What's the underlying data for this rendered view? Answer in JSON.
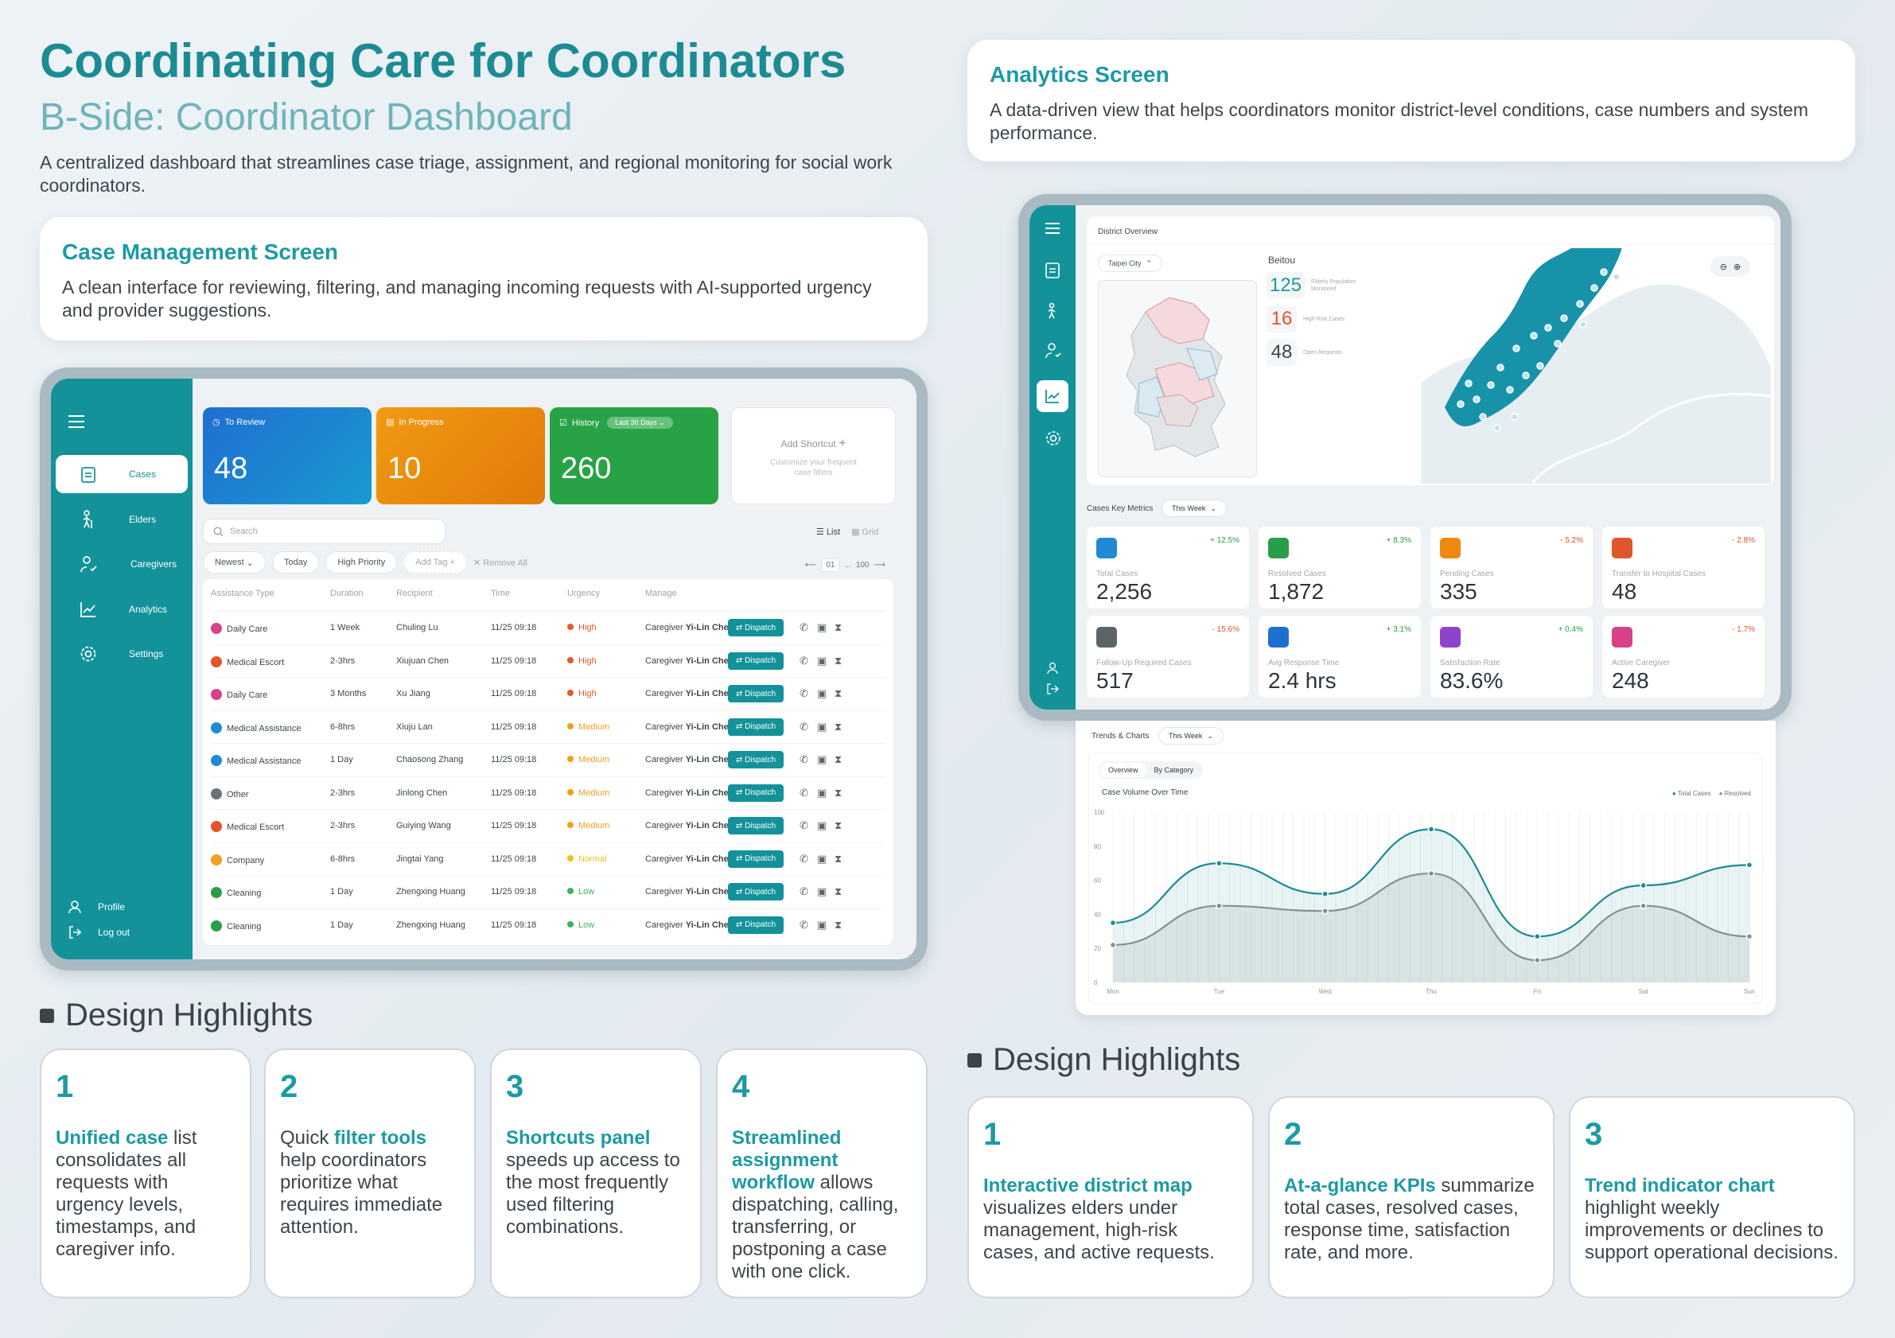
{
  "header": {
    "title": "Coordinating Care for Coordinators",
    "subtitle": "B-Side: Coordinator Dashboard",
    "description": "A centralized dashboard that streamlines case triage, assignment, and regional monitoring for social work coordinators."
  },
  "case_card": {
    "title": "Case Management Screen",
    "text": "A clean interface for reviewing, filtering, and managing incoming requests with AI-supported urgency and provider suggestions."
  },
  "analytics_card": {
    "title": "Analytics Screen",
    "text": "A data-driven view that helps coordinators monitor district-level conditions, case numbers and system performance."
  },
  "case_app": {
    "nav": [
      {
        "label": "Cases",
        "icon": "clipboard-icon"
      },
      {
        "label": "Elders",
        "icon": "elder-icon"
      },
      {
        "label": "Caregivers",
        "icon": "caregiver-icon"
      },
      {
        "label": "Analytics",
        "icon": "chart-icon"
      },
      {
        "label": "Settings",
        "icon": "gear-icon"
      }
    ],
    "nav_bottom": [
      {
        "label": "Profile"
      },
      {
        "label": "Log out"
      }
    ],
    "stats": [
      {
        "label": "To Review",
        "value": "48",
        "color": "#1f6fd1"
      },
      {
        "label": "In Progress",
        "value": "10",
        "color": "#ee8a10"
      },
      {
        "label": "History",
        "value": "260",
        "color": "#27a345",
        "badge": "Last 30 Days"
      }
    ],
    "shortcut": {
      "title": "Add Shortcut",
      "sub": "Customize your frequent case filters"
    },
    "search_placeholder": "Search",
    "view": {
      "list": "List",
      "grid": "Grid"
    },
    "filters": [
      "Newest",
      "Today",
      "High Priority"
    ],
    "add_tag": "Add Tag",
    "remove_all": "Remove All",
    "pager": {
      "page": "01",
      "sep": "...",
      "last": "100"
    },
    "columns": [
      "Assistance Type",
      "Duration",
      "Recipient",
      "Time",
      "Urgency",
      "Manage"
    ],
    "caregiver_label": "Caregiver",
    "dispatch_label": "Dispatch",
    "rows": [
      {
        "type": "Daily Care",
        "color": "#d9418a",
        "duration": "1 Week",
        "recipient": "Chuling Lu",
        "time": "11/25 09:18",
        "urgency": "High",
        "urgency_color": "#e25a2c",
        "caregiver": "Yi-Lin Chen"
      },
      {
        "type": "Medical Escort",
        "color": "#e0552c",
        "duration": "2-3hrs",
        "recipient": "Xiujuan Chen",
        "time": "11/25 09:18",
        "urgency": "High",
        "urgency_color": "#e25a2c",
        "caregiver": "Yi-Lin Chen"
      },
      {
        "type": "Daily Care",
        "color": "#d9418a",
        "duration": "3 Months",
        "recipient": "Xu Jiang",
        "time": "11/25 09:18",
        "urgency": "High",
        "urgency_color": "#e25a2c",
        "caregiver": "Yi-Lin Chen"
      },
      {
        "type": "Medical Assistance",
        "color": "#1f8bd6",
        "duration": "6-8hrs",
        "recipient": "Xiuju Lan",
        "time": "11/25 09:18",
        "urgency": "Medium",
        "urgency_color": "#f0a020",
        "caregiver": "Yi-Lin Chen"
      },
      {
        "type": "Medical Assistance",
        "color": "#1f8bd6",
        "duration": "1 Day",
        "recipient": "Chaosong Zhang",
        "time": "11/25 09:18",
        "urgency": "Medium",
        "urgency_color": "#f0a020",
        "caregiver": "Yi-Lin Chen"
      },
      {
        "type": "Other",
        "color": "#6b7378",
        "duration": "2-3hrs",
        "recipient": "Jinlong Chen",
        "time": "11/25 09:18",
        "urgency": "Medium",
        "urgency_color": "#f0a020",
        "caregiver": "Yi-Lin Chen"
      },
      {
        "type": "Medical Escort",
        "color": "#e0552c",
        "duration": "2-3hrs",
        "recipient": "Guiying Wang",
        "time": "11/25 09:18",
        "urgency": "Medium",
        "urgency_color": "#f0a020",
        "caregiver": "Yi-Lin Chen"
      },
      {
        "type": "Company",
        "color": "#f0a020",
        "duration": "6-8hrs",
        "recipient": "Jingtai Yang",
        "time": "11/25 09:18",
        "urgency": "Normal",
        "urgency_color": "#f0c020",
        "caregiver": "Yi-Lin Chen"
      },
      {
        "type": "Cleaning",
        "color": "#2a9d48",
        "duration": "1 Day",
        "recipient": "Zhengxing Huang",
        "time": "11/25 09:18",
        "urgency": "Low",
        "urgency_color": "#3cb35a",
        "caregiver": "Yi-Lin Chen"
      },
      {
        "type": "Cleaning",
        "color": "#2a9d48",
        "duration": "1 Day",
        "recipient": "Zhengxing Huang",
        "time": "11/25 09:18",
        "urgency": "Low",
        "urgency_color": "#3cb35a",
        "caregiver": "Yi-Lin Chen"
      }
    ]
  },
  "analytics_app": {
    "district_title": "District Overview",
    "city": "Taipei City",
    "district": "Beitou",
    "district_stats": [
      {
        "value": "125",
        "label": "Elderly Population Monitored",
        "color": "#1c9aa3"
      },
      {
        "value": "16",
        "label": "High-Risk Cases",
        "color": "#e0552c"
      },
      {
        "value": "48",
        "label": "Open Requests",
        "color": "#3c464c"
      }
    ],
    "metrics_title": "Cases Key Metrics",
    "period": "This Week",
    "kpis": [
      {
        "label": "Total Cases",
        "value": "2,256",
        "change": "+ 12.5%",
        "color": "#1f8bd6",
        "change_color": "#2a9d48"
      },
      {
        "label": "Resolved Cases",
        "value": "1,872",
        "change": "+ 8.3%",
        "color": "#2a9d48",
        "change_color": "#2a9d48"
      },
      {
        "label": "Pending Cases",
        "value": "335",
        "change": "- 5.2%",
        "color": "#ee8a10",
        "change_color": "#e0552c"
      },
      {
        "label": "Transfer to Hospital Cases",
        "value": "48",
        "change": "- 2.8%",
        "color": "#e0552c",
        "change_color": "#e0552c"
      },
      {
        "label": "Follow-Up Required Cases",
        "value": "517",
        "change": "- 15.6%",
        "color": "#5c6468",
        "change_color": "#e0552c"
      },
      {
        "label": "Avg Response Time",
        "value": "2.4 hrs",
        "change": "+ 3.1%",
        "color": "#1f6fd1",
        "change_color": "#2a9d48"
      },
      {
        "label": "Satisfaction Rate",
        "value": "83.6%",
        "change": "+ 0.4%",
        "color": "#8e44c9",
        "change_color": "#2a9d48"
      },
      {
        "label": "Active Caregiver",
        "value": "248",
        "change": "- 1.7%",
        "color": "#d9418a",
        "change_color": "#e0552c"
      }
    ],
    "trends_title": "Trends & Charts",
    "trend_period": "This Week",
    "tabs": [
      "Overview",
      "By Category"
    ]
  },
  "chart_data": {
    "type": "line",
    "title": "Case Volume Over Time",
    "categories": [
      "Mon",
      "Tue",
      "Wed",
      "Thu",
      "Fri",
      "Sat",
      "Sun"
    ],
    "ylim": [
      0,
      100
    ],
    "yticks": [
      0,
      20,
      40,
      60,
      80,
      100
    ],
    "series": [
      {
        "name": "Total Cases",
        "color": "#1c8b93",
        "values": [
          35,
          70,
          52,
          90,
          27,
          57,
          69
        ]
      },
      {
        "name": "Resolved",
        "color": "#888f93",
        "values": [
          22,
          45,
          42,
          64,
          13,
          45,
          27
        ]
      }
    ]
  },
  "highlights_left": {
    "title": "Design Highlights",
    "items": [
      {
        "num": "1",
        "pre": "",
        "bold": "Unified case",
        "post": " list consolidates all requests with urgency levels, timestamps, and caregiver info."
      },
      {
        "num": "2",
        "pre": "Quick ",
        "bold": "filter tools",
        "post": " help coordinators prioritize what requires immediate attention."
      },
      {
        "num": "3",
        "pre": "",
        "bold": "Shortcuts panel",
        "post": " speeds up access to the most frequently used filtering combinations."
      },
      {
        "num": "4",
        "pre": "",
        "bold": "Streamlined assignment workflow",
        "post": " allows dispatching, calling, transferring, or postponing a case with one click."
      }
    ]
  },
  "highlights_right": {
    "title": "Design Highlights",
    "items": [
      {
        "num": "1",
        "pre": "",
        "bold": "Interactive district map",
        "post": " visualizes elders under management, high-risk cases, and active requests."
      },
      {
        "num": "2",
        "pre": "",
        "bold": "At-a-glance KPIs",
        "post": " summarize total cases, resolved cases, response time, satisfaction rate, and more."
      },
      {
        "num": "3",
        "pre": "",
        "bold": "Trend indicator chart",
        "post": " highlight weekly improvements or declines to support operational decisions."
      }
    ]
  }
}
